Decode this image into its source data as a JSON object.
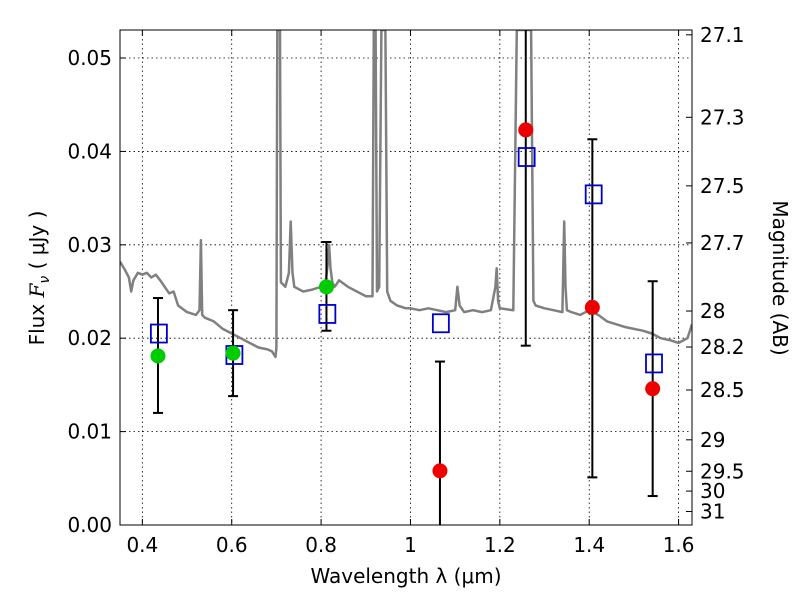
{
  "chart_data": {
    "type": "scatter",
    "xlabel": "Wavelength  λ (μm)",
    "ylabel": "Flux  F_ν  ( μJy )",
    "ylabel_parts": {
      "pre": "Flux  ",
      "sym": "F",
      "sub": "ν",
      "post": "  ( μJy )"
    },
    "y2label": "Magnitude (AB)",
    "xlim": [
      0.35,
      1.63
    ],
    "ylim": [
      0.0,
      0.053
    ],
    "grid": true,
    "xticks": [
      0.4,
      0.6,
      0.8,
      1.0,
      1.2,
      1.4,
      1.6
    ],
    "xtick_labels": [
      "0.4",
      "0.6",
      "0.8",
      "1",
      "1.2",
      "1.4",
      "1.6"
    ],
    "yticks": [
      0.0,
      0.01,
      0.02,
      0.03,
      0.04,
      0.05
    ],
    "ytick_labels": [
      "0.00",
      "0.01",
      "0.02",
      "0.03",
      "0.04",
      "0.05"
    ],
    "y2ticks": [
      27.1,
      27.3,
      27.5,
      27.7,
      28.0,
      28.2,
      28.5,
      29.0,
      29.5,
      30.0,
      31.0
    ],
    "y2tick_labels": [
      "27.1",
      "27.3",
      "27.5",
      "27.7",
      "28",
      "28.2",
      "28.5",
      "29",
      "29.5",
      "30",
      "31"
    ],
    "series": [
      {
        "name": "model spectrum",
        "kind": "line",
        "color": "#808080",
        "x": [
          0.35,
          0.36,
          0.37,
          0.375,
          0.38,
          0.39,
          0.4,
          0.41,
          0.42,
          0.43,
          0.44,
          0.45,
          0.46,
          0.47,
          0.48,
          0.5,
          0.52,
          0.528,
          0.531,
          0.534,
          0.54,
          0.56,
          0.58,
          0.6,
          0.62,
          0.64,
          0.66,
          0.68,
          0.69,
          0.698,
          0.7,
          0.702,
          0.704,
          0.706,
          0.708,
          0.71,
          0.72,
          0.728,
          0.732,
          0.736,
          0.74,
          0.76,
          0.78,
          0.8,
          0.81,
          0.815,
          0.818,
          0.821,
          0.825,
          0.83,
          0.835,
          0.84,
          0.86,
          0.88,
          0.9,
          0.915,
          0.918,
          0.922,
          0.925,
          0.93,
          0.935,
          0.938,
          0.941,
          0.944,
          0.948,
          0.955,
          0.97,
          0.99,
          1.0,
          1.02,
          1.04,
          1.06,
          1.08,
          1.1,
          1.105,
          1.11,
          1.12,
          1.14,
          1.16,
          1.18,
          1.19,
          1.193,
          1.196,
          1.2,
          1.23,
          1.238,
          1.242,
          1.245,
          1.25,
          1.26,
          1.27,
          1.275,
          1.28,
          1.3,
          1.32,
          1.34,
          1.344,
          1.347,
          1.35,
          1.36,
          1.38,
          1.4,
          1.42,
          1.44,
          1.46,
          1.48,
          1.5,
          1.52,
          1.54,
          1.56,
          1.58,
          1.6,
          1.62,
          1.63
        ],
        "y": [
          0.0282,
          0.0274,
          0.0265,
          0.025,
          0.0262,
          0.027,
          0.0268,
          0.027,
          0.0265,
          0.0268,
          0.0262,
          0.0255,
          0.0248,
          0.025,
          0.0235,
          0.0228,
          0.0225,
          0.023,
          0.0305,
          0.0225,
          0.0222,
          0.0218,
          0.021,
          0.0205,
          0.02,
          0.0195,
          0.019,
          0.0188,
          0.0186,
          0.018,
          0.019,
          0.053,
          0.053,
          0.053,
          0.053,
          0.026,
          0.0255,
          0.027,
          0.0325,
          0.027,
          0.0255,
          0.025,
          0.0252,
          0.0255,
          0.026,
          0.028,
          0.03,
          0.0275,
          0.026,
          0.0255,
          0.0258,
          0.0262,
          0.0255,
          0.025,
          0.0245,
          0.0245,
          0.053,
          0.053,
          0.025,
          0.0255,
          0.053,
          0.053,
          0.053,
          0.053,
          0.025,
          0.024,
          0.0235,
          0.0232,
          0.0232,
          0.023,
          0.0232,
          0.023,
          0.0228,
          0.023,
          0.0255,
          0.0235,
          0.0228,
          0.023,
          0.0228,
          0.023,
          0.0255,
          0.0275,
          0.024,
          0.0232,
          0.023,
          0.053,
          0.053,
          0.053,
          0.053,
          0.053,
          0.053,
          0.024,
          0.0235,
          0.0232,
          0.023,
          0.0228,
          0.0325,
          0.0255,
          0.023,
          0.0228,
          0.0225,
          0.023,
          0.0225,
          0.0218,
          0.0215,
          0.0212,
          0.021,
          0.0208,
          0.0205,
          0.02,
          0.0198,
          0.0195,
          0.02,
          0.0215
        ]
      },
      {
        "name": "model photometry",
        "kind": "open-square",
        "color": "#0000cc",
        "x": [
          0.437,
          0.606,
          0.814,
          1.068,
          1.26,
          1.41,
          1.545
        ],
        "y": [
          0.0205,
          0.0182,
          0.0226,
          0.0216,
          0.0394,
          0.0354,
          0.0173
        ]
      },
      {
        "name": "observed (green)",
        "kind": "filled-circle",
        "color": "#00cc00",
        "x": [
          0.435,
          0.603,
          0.812
        ],
        "y": [
          0.0181,
          0.0184,
          0.0255
        ],
        "err_low": [
          0.012,
          0.0138,
          0.0208
        ],
        "err_high": [
          0.0243,
          0.023,
          0.0303
        ]
      },
      {
        "name": "observed (red)",
        "kind": "filled-circle",
        "color": "#ee0000",
        "x": [
          1.066,
          1.258,
          1.407,
          1.542
        ],
        "y": [
          0.0058,
          0.0423,
          0.0233,
          0.0146
        ],
        "err_low": [
          -0.001,
          0.0192,
          0.0051,
          0.0031
        ],
        "err_high": [
          0.0175,
          0.055,
          0.0413,
          0.0261
        ]
      }
    ]
  }
}
